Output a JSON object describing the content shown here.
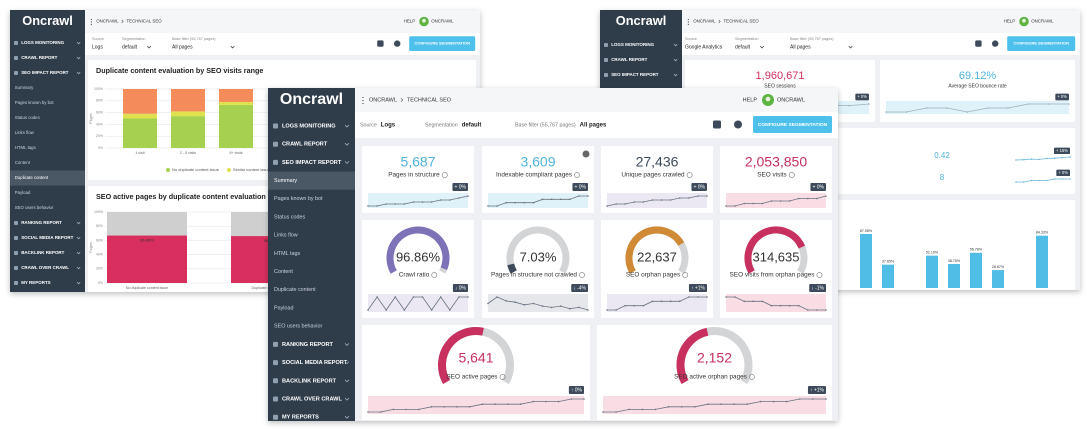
{
  "windows": [
    {
      "logo": "Oncrawl",
      "breadcrumb": [
        "ONCRAWL",
        "TECHNICAL SEO"
      ],
      "help": "HELP",
      "user": "ONCRAWL",
      "filters": [
        {
          "label": "Source",
          "value": "Logs"
        },
        {
          "label": "Segmentation",
          "value": "default"
        },
        {
          "label": "Base filter (55,767 pages)",
          "value": "All pages"
        }
      ],
      "button": "CONFIGURE SEGMENTATION",
      "menu": [
        {
          "label": "LOGS MONITORING"
        },
        {
          "label": "CRAWL REPORT"
        },
        {
          "label": "SEO IMPACT REPORT",
          "items": [
            "Summary",
            "Pages known by bot",
            "Status codes",
            "Links flow",
            "HTML tags",
            "Content",
            "Duplicate content",
            "Payload",
            "SEO users behavior"
          ],
          "active": 6
        },
        {
          "label": "RANKING REPORT"
        },
        {
          "label": "SOCIAL MEDIA REPORT"
        },
        {
          "label": "BACKLINK REPORT"
        },
        {
          "label": "CRAWL OVER CRAWL"
        },
        {
          "label": "MY REPORTS"
        }
      ]
    },
    {
      "logo": "Oncrawl",
      "breadcrumb": [
        "ONCRAWL",
        "TECHNICAL SEO"
      ],
      "help": "HELP",
      "user": "ONCRAWL",
      "filters": [
        {
          "label": "Source",
          "value": "Google Analytics"
        },
        {
          "label": "Segmentation",
          "value": "default"
        },
        {
          "label": "Base filter (55,767 pages)",
          "value": "All pages"
        }
      ],
      "button": "CONFIGURE SEGMENTATION",
      "menu": [
        {
          "label": "LOGS MONITORING"
        },
        {
          "label": "CRAWL REPORT"
        },
        {
          "label": "SEO IMPACT REPORT"
        }
      ]
    },
    {
      "logo": "Oncrawl",
      "breadcrumb": [
        "ONCRAWL",
        "TECHNICAL SEO"
      ],
      "help": "HELP",
      "user": "ONCRAWL",
      "filters": [
        {
          "label": "Source",
          "value": "Logs"
        },
        {
          "label": "Segmentation",
          "value": "default"
        },
        {
          "label": "Base filter (55,767 pages)",
          "value": "All pages"
        }
      ],
      "button": "CONFIGURE SEGMENTATION",
      "menu": [
        {
          "label": "LOGS MONITORING"
        },
        {
          "label": "CRAWL REPORT"
        },
        {
          "label": "SEO IMPACT REPORT",
          "items": [
            "Summary",
            "Pages known by bot",
            "Status codes",
            "Links flow",
            "HTML tags",
            "Content",
            "Duplicate content",
            "Payload",
            "SEO users behavior"
          ],
          "active": 0
        },
        {
          "label": "RANKING REPORT"
        },
        {
          "label": "SOCIAL MEDIA REPORT"
        },
        {
          "label": "BACKLINK REPORT"
        },
        {
          "label": "CRAWL OVER CRAWL"
        },
        {
          "label": "MY REPORTS"
        }
      ]
    }
  ],
  "left_charts": [
    {
      "type": "bar",
      "stacked": true,
      "title": "Duplicate content evaluation by SEO visits range",
      "ylabel": "Pages",
      "categories": [
        "1 visit",
        "2 - 5 visits",
        "6+ visits"
      ],
      "series": [
        {
          "name": "No duplicate content issue",
          "color": "#a6d150",
          "values": [
            50,
            54,
            73
          ]
        },
        {
          "name": "Similar content issues",
          "color": "#dfe24e",
          "values": [
            8,
            8,
            5
          ]
        },
        {
          "name": "Duplicate content issues",
          "color": "#f38b5a",
          "values": [
            42,
            38,
            22
          ]
        }
      ],
      "ylim": [
        0,
        100
      ],
      "yticks": [
        {
          "value": 0,
          "label": "0%"
        },
        {
          "value": 20,
          "label": "20%"
        },
        {
          "value": 40,
          "label": "40%"
        },
        {
          "value": 60,
          "label": "60%"
        },
        {
          "value": 80,
          "label": "80%"
        },
        {
          "value": 100,
          "label": "100%"
        }
      ]
    },
    {
      "type": "bar",
      "stacked": true,
      "title": "SEO active pages by duplicate content evaluation",
      "ylabel": "Pages",
      "categories": [
        "No duplicate content issue",
        "Duplicate content issues"
      ],
      "series": [
        {
          "name": "Active",
          "color": "#d92f5e",
          "values": [
            66.86,
            66.13
          ],
          "value_labels": [
            "66.86%",
            "66.13%"
          ]
        },
        {
          "name": "Not active",
          "color": "#cfcfcf",
          "values": [
            33.14,
            33.87
          ]
        }
      ],
      "ylim": [
        0,
        100
      ],
      "yticks": [
        {
          "value": 0,
          "label": "0%"
        },
        {
          "value": 20,
          "label": "20%"
        },
        {
          "value": 40,
          "label": "40%"
        },
        {
          "value": 60,
          "label": "60%"
        },
        {
          "value": 80,
          "label": "80%"
        },
        {
          "value": 100,
          "label": "100%"
        }
      ]
    }
  ],
  "right": {
    "cards": [
      {
        "value": "1,960,671",
        "label": "SEO sessions",
        "delta": "+ 0%",
        "color": "#d02e5d",
        "spark": [
          40,
          41,
          41,
          42,
          42,
          43,
          43,
          44,
          44,
          45
        ]
      },
      {
        "value": "69.12%",
        "label": "Average SEO bounce rate",
        "delta": "+ 0%",
        "color": "#4fb3dd",
        "spark": [
          50,
          50,
          51,
          51,
          50,
          51,
          51,
          52,
          52,
          52
        ]
      }
    ],
    "rows": [
      {
        "value": "0.42",
        "delta": "+ 15%",
        "spark": [
          30,
          31,
          33,
          32,
          35,
          36,
          38,
          40
        ]
      },
      {
        "value": "8",
        "delta": "+ 0%",
        "spark": [
          20,
          20,
          21,
          21,
          21,
          22,
          22,
          22
        ]
      }
    ],
    "chart": {
      "type": "bar",
      "color": "#4fbde6",
      "ylim": [
        0,
        100
      ],
      "values": [
        87.08,
        37.65,
        null,
        52.19,
        38.75,
        56.78,
        28.87,
        null,
        84.33
      ],
      "value_labels": [
        "87.08%",
        "37.65%",
        null,
        "52.19%",
        "38.75%",
        "56.78%",
        "28.87%",
        null,
        "84.33%"
      ]
    }
  },
  "front": {
    "metrics": [
      {
        "value": "5,687",
        "label": "Pages in structure",
        "delta": "+ 0%",
        "color": "#4fb3dd",
        "tint": "#dff1f9",
        "spark": [
          52,
          52,
          53,
          53,
          53,
          54,
          54,
          54,
          55,
          55,
          56,
          57
        ]
      },
      {
        "value": "3,609",
        "label": "Indexable compliant pages",
        "delta": "+ 0%",
        "color": "#4fb3dd",
        "tint": "#dff1f9",
        "spark": [
          40,
          40,
          41,
          41,
          41,
          41,
          42,
          42,
          42,
          42,
          43,
          43
        ]
      },
      {
        "value": "27,436",
        "label": "Unique pages crawled",
        "delta": "+ 0%",
        "color": "#3d4a5c",
        "tint": "#ebe8f3",
        "spark": [
          30,
          31,
          31,
          32,
          32,
          33,
          33,
          33,
          34,
          34,
          35,
          35
        ]
      },
      {
        "value": "2,053,850",
        "label": "SEO visits",
        "delta": "+ 0%",
        "color": "#c7305f",
        "tint": "#f8dde5",
        "spark": [
          60,
          60,
          61,
          61,
          61,
          62,
          62,
          62,
          63,
          63,
          63,
          64
        ]
      }
    ],
    "gauges": [
      {
        "value": "96.86%",
        "label": "Crawl ratio",
        "delta": "↓ 0%",
        "fill": 96.86,
        "color": "#7d72b8",
        "tint": "#ebe8f3",
        "spark": [
          50,
          51,
          50,
          51,
          50,
          51,
          51,
          50,
          51,
          50,
          51,
          51
        ]
      },
      {
        "value": "7.03%",
        "label": "Pages in structure not crawled",
        "delta": "↓ -4%",
        "fill": 7.03,
        "color": "#3d4a5c",
        "tint": "#e6e7ea",
        "spark": [
          50,
          55,
          52,
          51,
          49,
          50,
          48,
          47,
          48,
          46,
          47,
          45
        ]
      },
      {
        "value": "22,637",
        "label": "SEO orphan pages",
        "delta": "↑ +1%",
        "fill": 75,
        "color": "#d08a35",
        "tint": "#ebe8f3",
        "spark": [
          40,
          40,
          41,
          41,
          41,
          42,
          42,
          42,
          42,
          43,
          43,
          43
        ]
      },
      {
        "value": "314,635",
        "label": "SEO visits from orphan pages",
        "delta": "↓ -1%",
        "fill": 78,
        "color": "#c7305f",
        "tint": "#f8dde5",
        "spark": [
          55,
          55,
          54,
          54,
          54,
          53,
          53,
          53,
          53,
          52,
          52,
          52
        ]
      }
    ],
    "wide": [
      {
        "value": "5,641",
        "label": "SEO active pages",
        "delta": "↑ 0%",
        "fill": 55,
        "color": "#c7305f",
        "tint": "#f8dde5",
        "spark": [
          30,
          30,
          31,
          31,
          31,
          32,
          32,
          32,
          32,
          33,
          33,
          33,
          33,
          34,
          34,
          34,
          35,
          35
        ]
      },
      {
        "value": "2,152",
        "label": "SEO active orphan pages",
        "delta": "↑ +1%",
        "fill": 45,
        "color": "#c7305f",
        "tint": "#f8dde5",
        "spark": [
          20,
          20,
          21,
          21,
          21,
          22,
          22,
          22,
          23,
          23,
          23,
          23,
          24,
          24,
          24,
          25,
          25,
          25
        ]
      }
    ]
  }
}
